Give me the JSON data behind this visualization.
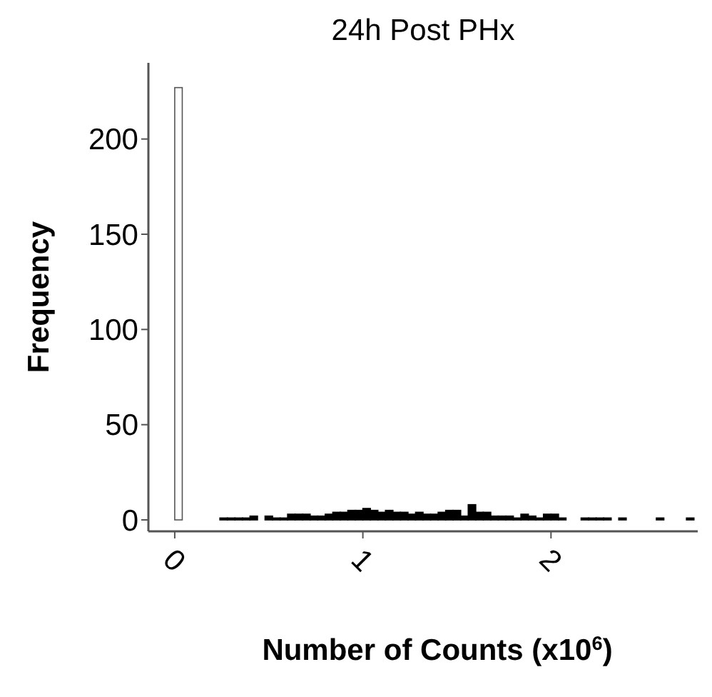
{
  "chart_data": {
    "type": "histogram",
    "title": "24h Post PHx",
    "xlabel": "Number of Counts (x10$^{6}$)",
    "ylabel": "Frequency",
    "bins": [
      0,
      0.04,
      0.08,
      0.12,
      0.16,
      0.2,
      0.24,
      0.28,
      0.32,
      0.36,
      0.4,
      0.44,
      0.48,
      0.52,
      0.56,
      0.6,
      0.64,
      0.68,
      0.72,
      0.76,
      0.8,
      0.84,
      0.88,
      0.92,
      0.96,
      1,
      1.04,
      1.08,
      1.12,
      1.16,
      1.2,
      1.24,
      1.28,
      1.32,
      1.36,
      1.4,
      1.44,
      1.48,
      1.52,
      1.56,
      1.6,
      1.64,
      1.68,
      1.72,
      1.76,
      1.8,
      1.84,
      1.88,
      1.92,
      1.96,
      2,
      2.04,
      2.08,
      2.12,
      2.16,
      2.2,
      2.24,
      2.28,
      2.32,
      2.36,
      2.4,
      2.44,
      2.48,
      2.52,
      2.56,
      2.6,
      2.64,
      2.68,
      2.72,
      2.76
    ],
    "values": [
      227,
      0,
      0,
      0,
      0,
      0,
      1,
      1,
      1,
      1,
      2,
      0,
      2,
      1,
      1,
      3,
      3,
      3,
      2,
      2,
      3,
      4,
      4,
      5,
      5,
      6,
      5,
      4,
      5,
      4,
      4,
      3,
      4,
      3,
      3,
      4,
      5,
      5,
      2,
      8,
      4,
      4,
      2,
      2,
      2,
      1,
      3,
      2,
      1,
      3,
      3,
      1,
      0,
      0,
      1,
      1,
      1,
      1,
      0,
      1,
      0,
      0,
      0,
      0,
      1,
      0,
      0,
      0,
      1
    ],
    "colors": [
      "#ffffff",
      "#000000",
      "#000000",
      "#000000",
      "#000000",
      "#000000",
      "#000000",
      "#000000",
      "#000000",
      "#000000",
      "#000000",
      "#000000",
      "#000000",
      "#000000",
      "#000000",
      "#000000",
      "#000000",
      "#000000",
      "#000000",
      "#000000",
      "#000000",
      "#000000",
      "#000000",
      "#000000",
      "#000000",
      "#000000",
      "#000000",
      "#000000",
      "#000000",
      "#000000",
      "#000000",
      "#000000",
      "#000000",
      "#000000",
      "#000000",
      "#000000",
      "#000000",
      "#000000",
      "#000000",
      "#000000",
      "#000000",
      "#000000",
      "#000000",
      "#000000",
      "#000000",
      "#000000",
      "#000000",
      "#000000",
      "#000000",
      "#000000",
      "#000000",
      "#000000",
      "#000000",
      "#000000",
      "#000000",
      "#000000",
      "#000000",
      "#000000",
      "#000000",
      "#000000",
      "#000000",
      "#000000",
      "#000000",
      "#000000",
      "#000000",
      "#000000",
      "#000000",
      "#000000",
      "#000000"
    ],
    "xlim": [
      -0.14,
      2.78
    ],
    "xticks": [
      0,
      1,
      2
    ],
    "ylim": [
      -6,
      240
    ],
    "yticks": [
      0,
      50,
      100,
      150,
      200
    ],
    "grid": false
  }
}
